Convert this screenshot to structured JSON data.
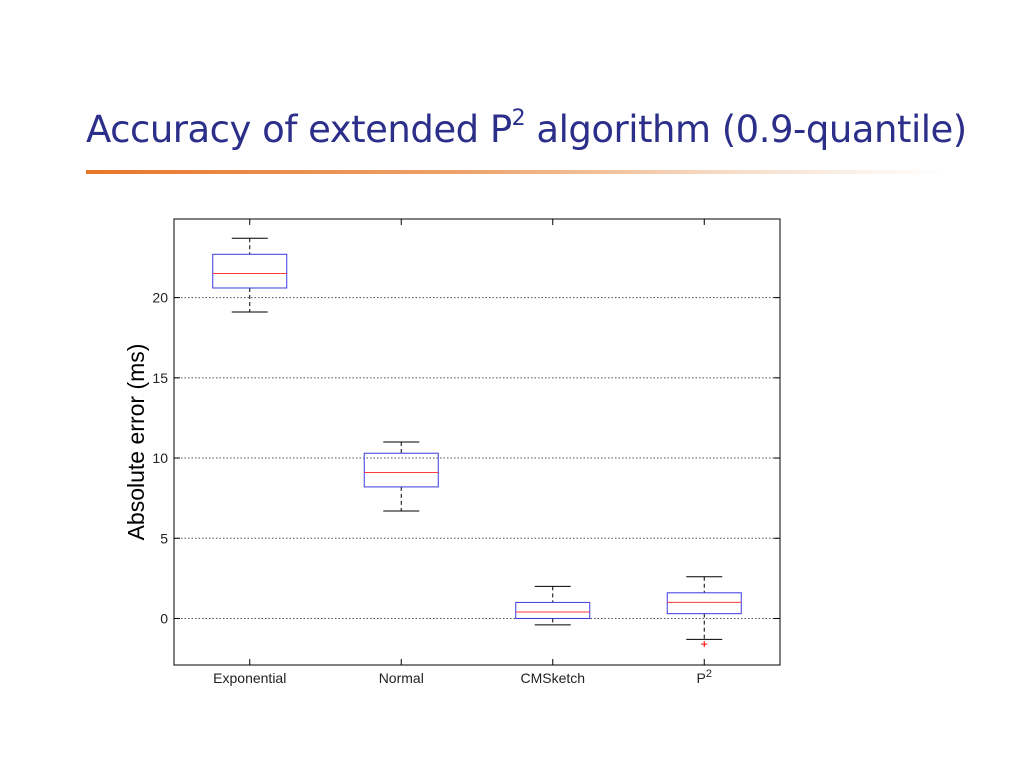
{
  "slide": {
    "title_main": "Accuracy of extended P",
    "title_sup": "2",
    "title_rest": " algorithm (0.9-quantile)"
  },
  "colors": {
    "title": "#2b2f8a",
    "rule": "#e8772a",
    "box": "#3a3ae0",
    "median": "#ff3b3b",
    "whisker": "#000000",
    "outlier": "#ff0000"
  },
  "chart_data": {
    "type": "box",
    "title": "",
    "xlabel": "",
    "ylabel": "Absolute error (ms)",
    "ylim": [
      -2.9,
      24.9
    ],
    "yticks": [
      0,
      5,
      10,
      15,
      20
    ],
    "grid": "horizontal dotted",
    "categories": [
      "Exponential",
      "Normal",
      "CMSketch",
      "P2"
    ],
    "category_labels": [
      {
        "base": "Exponential",
        "sup": ""
      },
      {
        "base": "Normal",
        "sup": ""
      },
      {
        "base": "CMSketch",
        "sup": ""
      },
      {
        "base": "P",
        "sup": "2"
      }
    ],
    "boxes": [
      {
        "category": "Exponential",
        "whisker_low": 19.1,
        "q1": 20.6,
        "median": 21.5,
        "q3": 22.7,
        "whisker_high": 23.7,
        "outliers": []
      },
      {
        "category": "Normal",
        "whisker_low": 6.7,
        "q1": 8.2,
        "median": 9.1,
        "q3": 10.3,
        "whisker_high": 11.0,
        "outliers": []
      },
      {
        "category": "CMSketch",
        "whisker_low": -0.4,
        "q1": 0.0,
        "median": 0.4,
        "q3": 1.0,
        "whisker_high": 2.0,
        "outliers": []
      },
      {
        "category": "P2",
        "whisker_low": -1.3,
        "q1": 0.3,
        "median": 1.0,
        "q3": 1.6,
        "whisker_high": 2.6,
        "outliers": [
          -1.6
        ]
      }
    ]
  }
}
